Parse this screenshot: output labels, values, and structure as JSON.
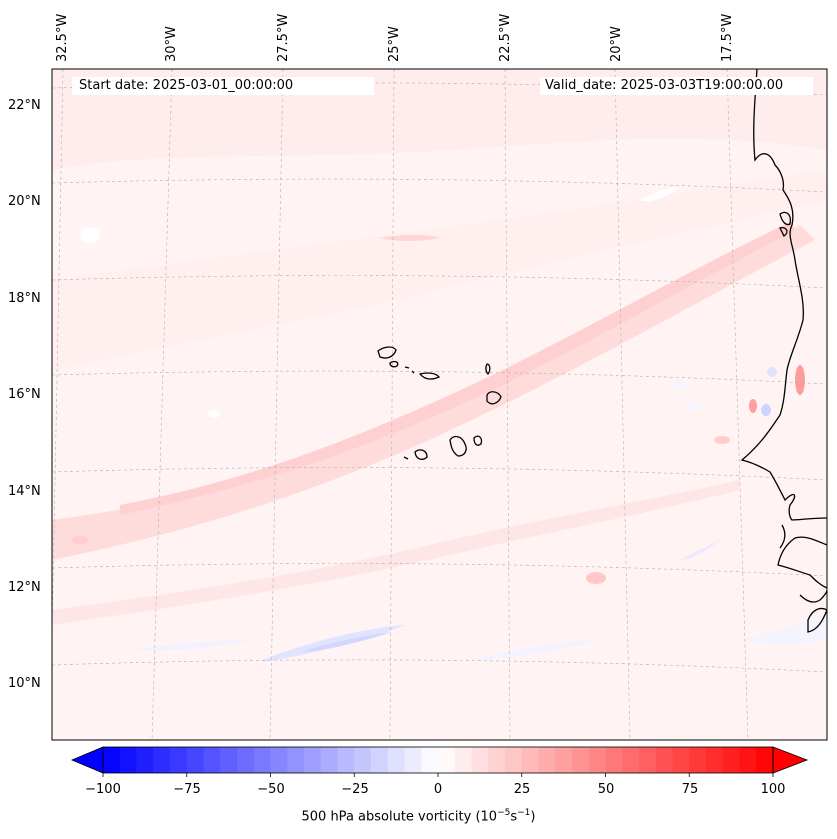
{
  "map": {
    "name": "500 hPa absolute vorticity map",
    "region": "Eastern Atlantic (Cape Verde / West Africa)",
    "start_date_label": "Start date: 2025-03-01_00:00:00",
    "valid_date_label": "Valid_date: 2025-03-03T19:00:00.00",
    "lat_labels": [
      "22°N",
      "20°N",
      "18°N",
      "16°N",
      "14°N",
      "12°N",
      "10°N"
    ],
    "lon_labels": [
      "32.5°W",
      "30°W",
      "27.5°W",
      "25°W",
      "22.5°W",
      "20°W",
      "17.5°W"
    ]
  },
  "colorbar": {
    "variable": "500 hPa absolute vorticity",
    "units_base": "10",
    "units_exp1": "−5",
    "units_mid": "s",
    "units_exp2": "−1",
    "vmin": -100,
    "vmax": 100,
    "tick_labels": [
      "−100",
      "−75",
      "−50",
      "−25",
      "0",
      "25",
      "50",
      "75",
      "100"
    ],
    "colors": {
      "negative": "#0000ff",
      "neutral": "#ffffff",
      "positive": "#ff0000"
    }
  }
}
